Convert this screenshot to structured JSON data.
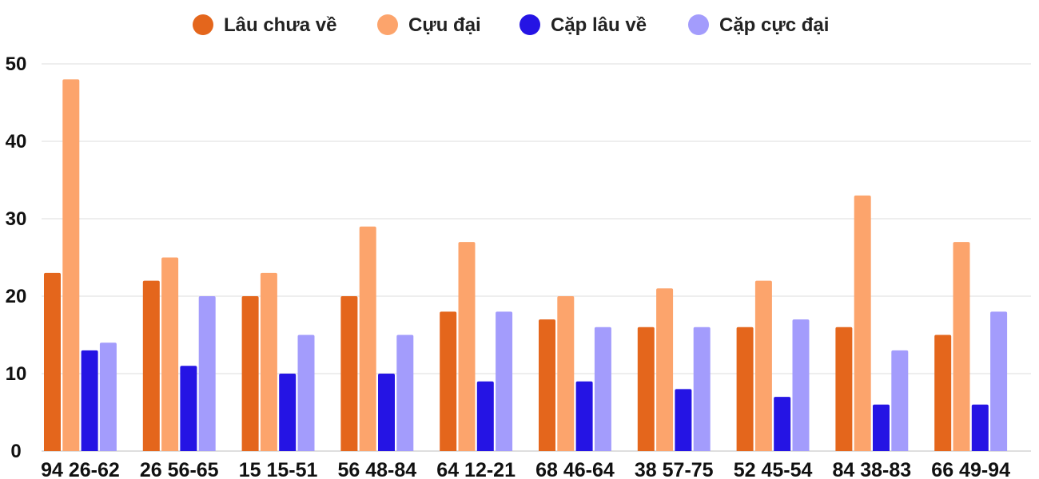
{
  "chart_data": {
    "type": "bar",
    "categories": [
      "94 26-62",
      "26 56-65",
      "15 15-51",
      "56 48-84",
      "64 12-21",
      "68 46-64",
      "38 57-75",
      "52 45-54",
      "84 38-83",
      "66 49-94"
    ],
    "series": [
      {
        "name": "Lâu chưa về",
        "color": "#e4661c",
        "values": [
          23,
          22,
          20,
          20,
          18,
          17,
          16,
          16,
          16,
          15
        ]
      },
      {
        "name": "Cựu đại",
        "color": "#fca46c",
        "values": [
          48,
          25,
          23,
          29,
          27,
          20,
          21,
          22,
          33,
          27
        ]
      },
      {
        "name": "Cặp lâu về",
        "color": "#2514e4",
        "values": [
          13,
          11,
          10,
          10,
          9,
          9,
          8,
          7,
          6,
          6
        ]
      },
      {
        "name": "Cặp cực đại",
        "color": "#a39cfc",
        "values": [
          14,
          20,
          15,
          15,
          18,
          16,
          16,
          17,
          13,
          18
        ]
      }
    ],
    "ylim": [
      0,
      50
    ],
    "yticks": [
      "0",
      "10",
      "20",
      "30",
      "40",
      "50"
    ],
    "grid": true,
    "legend_position": "top"
  }
}
